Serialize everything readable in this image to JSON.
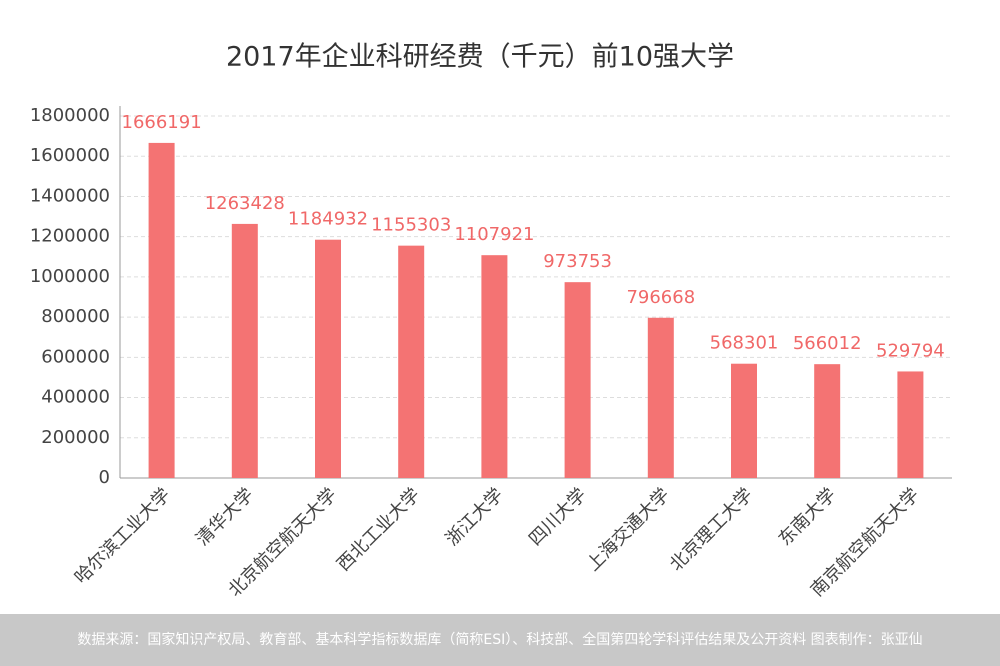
{
  "chart_data": {
    "type": "bar",
    "title": "2017年企业科研经费（千元）前10强大学",
    "categories": [
      "哈尔滨工业大学",
      "清华大学",
      "北京航空航天大学",
      "西北工业大学",
      "浙江大学",
      "四川大学",
      "上海交通大学",
      "北京理工大学",
      "东南大学",
      "南京航空航天大学"
    ],
    "values": [
      1666191,
      1263428,
      1184932,
      1155303,
      1107921,
      973753,
      796668,
      568301,
      566012,
      529794
    ],
    "color": "#f47373",
    "ylim": [
      0,
      1800000
    ],
    "yticks": [
      0,
      200000,
      400000,
      600000,
      800000,
      1000000,
      1200000,
      1400000,
      1600000,
      1800000
    ],
    "grid": true,
    "footnote": "数据来源：国家知识产权局、教育部、基本科学指标数据库（简称ESI）、科技部、全国第四轮学科评估结果及公开资料  图表制作：张亚仙"
  }
}
